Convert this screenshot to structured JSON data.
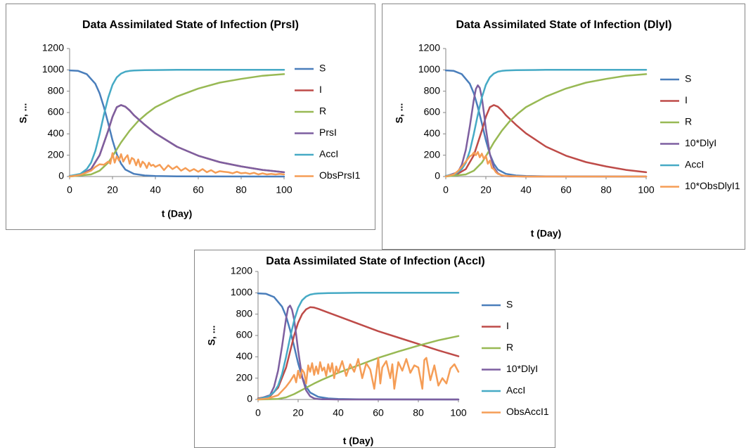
{
  "colors": {
    "S": "#4a7ebb",
    "I": "#be4b48",
    "R": "#98b954",
    "P": "#7d5fa0",
    "A": "#46aac5",
    "O": "#f59d56"
  },
  "chart_data": [
    {
      "type": "line",
      "title": "Data Assimilated State of Infection (PrsI)",
      "xlabel": "t (Day)",
      "ylabel": "S, ...",
      "xlim": [
        0,
        100
      ],
      "ylim": [
        0,
        1200
      ],
      "xticks": [
        0,
        20,
        40,
        60,
        80,
        100
      ],
      "yticks": [
        0,
        200,
        400,
        600,
        800,
        1000,
        1200
      ],
      "legend_position": "right",
      "series": [
        {
          "name": "S",
          "color_key": "S",
          "x": [
            0,
            4,
            8,
            12,
            14,
            16,
            18,
            20,
            22,
            24,
            26,
            30,
            35,
            40,
            50,
            100
          ],
          "y": [
            995,
            990,
            960,
            870,
            780,
            650,
            500,
            340,
            210,
            120,
            65,
            25,
            10,
            5,
            2,
            0
          ]
        },
        {
          "name": "I",
          "color_key": "I",
          "x": [
            0,
            5,
            10,
            14,
            18,
            20,
            22,
            24,
            26,
            28,
            30,
            35,
            40,
            50,
            60,
            70,
            80,
            90,
            100
          ],
          "y": [
            5,
            15,
            70,
            200,
            430,
            560,
            650,
            670,
            655,
            620,
            575,
            485,
            405,
            280,
            195,
            135,
            95,
            62,
            40
          ]
        },
        {
          "name": "R",
          "color_key": "R",
          "x": [
            0,
            10,
            14,
            18,
            20,
            24,
            28,
            32,
            36,
            40,
            50,
            60,
            70,
            80,
            90,
            100
          ],
          "y": [
            0,
            20,
            55,
            130,
            190,
            320,
            430,
            520,
            590,
            650,
            750,
            825,
            880,
            915,
            945,
            960
          ]
        },
        {
          "name": "PrsI",
          "color_key": "P",
          "x": [
            0,
            5,
            10,
            14,
            18,
            20,
            22,
            24,
            26,
            28,
            30,
            35,
            40,
            50,
            60,
            70,
            80,
            90,
            100
          ],
          "y": [
            5,
            15,
            70,
            200,
            430,
            560,
            650,
            670,
            655,
            620,
            575,
            485,
            405,
            280,
            195,
            135,
            95,
            62,
            40
          ]
        },
        {
          "name": "AccI",
          "color_key": "A",
          "x": [
            0,
            5,
            8,
            10,
            12,
            14,
            16,
            18,
            20,
            22,
            24,
            26,
            28,
            30,
            35,
            40,
            50,
            100
          ],
          "y": [
            5,
            25,
            70,
            130,
            240,
            400,
            580,
            740,
            860,
            930,
            965,
            983,
            990,
            994,
            997,
            998,
            1000,
            1000
          ]
        },
        {
          "name": "ObsPrsI1",
          "color_key": "O",
          "x": [
            0,
            5,
            10,
            12,
            14,
            16,
            18,
            19,
            20,
            21,
            22,
            23,
            24,
            25,
            26,
            27,
            28,
            29,
            30,
            31,
            32,
            33,
            34,
            35,
            36,
            37,
            38,
            39,
            40,
            42,
            44,
            46,
            48,
            50,
            52,
            54,
            56,
            58,
            60,
            62,
            64,
            66,
            68,
            70,
            72,
            74,
            76,
            78,
            80,
            82,
            84,
            86,
            88,
            90,
            92,
            94,
            96,
            98,
            100
          ],
          "y": [
            0,
            15,
            55,
            90,
            115,
            110,
            140,
            120,
            220,
            130,
            190,
            150,
            210,
            140,
            175,
            200,
            120,
            175,
            160,
            105,
            160,
            90,
            140,
            120,
            80,
            130,
            100,
            110,
            90,
            110,
            60,
            105,
            70,
            95,
            55,
            80,
            50,
            70,
            45,
            70,
            40,
            60,
            35,
            50,
            45,
            40,
            30,
            45,
            30,
            35,
            25,
            35,
            20,
            30,
            20,
            25,
            20,
            25,
            20
          ]
        }
      ]
    },
    {
      "type": "line",
      "title": "Data Assimilated State of Infection (DlyI)",
      "xlabel": "t (Day)",
      "ylabel": "S, ...",
      "xlim": [
        0,
        100
      ],
      "ylim": [
        0,
        1200
      ],
      "xticks": [
        0,
        20,
        40,
        60,
        80,
        100
      ],
      "yticks": [
        0,
        200,
        400,
        600,
        800,
        1000,
        1200
      ],
      "legend_position": "right",
      "series": [
        {
          "name": "S",
          "color_key": "S",
          "x": [
            0,
            4,
            8,
            12,
            14,
            16,
            18,
            20,
            22,
            24,
            26,
            30,
            35,
            40,
            50,
            100
          ],
          "y": [
            995,
            990,
            960,
            870,
            780,
            650,
            500,
            340,
            210,
            120,
            65,
            25,
            10,
            5,
            2,
            0
          ]
        },
        {
          "name": "I",
          "color_key": "I",
          "x": [
            0,
            5,
            10,
            14,
            18,
            20,
            22,
            24,
            26,
            28,
            30,
            35,
            40,
            50,
            60,
            70,
            80,
            90,
            100
          ],
          "y": [
            5,
            15,
            70,
            200,
            430,
            560,
            650,
            670,
            655,
            620,
            575,
            485,
            405,
            280,
            195,
            135,
            95,
            62,
            40
          ]
        },
        {
          "name": "R",
          "color_key": "R",
          "x": [
            0,
            10,
            14,
            18,
            20,
            24,
            28,
            32,
            36,
            40,
            50,
            60,
            70,
            80,
            90,
            100
          ],
          "y": [
            0,
            20,
            55,
            130,
            190,
            320,
            430,
            520,
            590,
            650,
            750,
            825,
            880,
            915,
            945,
            960
          ]
        },
        {
          "name": "10*DlyI",
          "color_key": "P",
          "x": [
            0,
            6,
            8,
            10,
            12,
            14,
            15,
            16,
            17,
            18,
            19,
            20,
            22,
            24,
            26,
            28,
            30,
            32,
            35,
            40,
            50,
            100
          ],
          "y": [
            2,
            40,
            110,
            250,
            470,
            720,
            820,
            855,
            830,
            740,
            600,
            450,
            210,
            85,
            30,
            10,
            4,
            2,
            1,
            0,
            0,
            0
          ]
        },
        {
          "name": "AccI",
          "color_key": "A",
          "x": [
            0,
            5,
            8,
            10,
            12,
            14,
            16,
            18,
            20,
            22,
            24,
            26,
            28,
            30,
            35,
            40,
            50,
            100
          ],
          "y": [
            5,
            25,
            70,
            130,
            240,
            400,
            580,
            740,
            860,
            930,
            965,
            983,
            990,
            994,
            997,
            998,
            1000,
            1000
          ]
        },
        {
          "name": "10*ObsDlyI1",
          "color_key": "O",
          "x": [
            0,
            4,
            6,
            8,
            10,
            12,
            13,
            14,
            15,
            16,
            17,
            18,
            19,
            20,
            21,
            22,
            23,
            24,
            25,
            26,
            28,
            30,
            35,
            40,
            100
          ],
          "y": [
            0,
            20,
            50,
            90,
            140,
            190,
            200,
            225,
            200,
            230,
            180,
            215,
            165,
            195,
            120,
            150,
            80,
            70,
            40,
            25,
            12,
            6,
            2,
            0,
            0
          ]
        }
      ]
    },
    {
      "type": "line",
      "title": "Data Assimilated State of Infection (AccI)",
      "xlabel": "t (Day)",
      "ylabel": "S, ...",
      "xlim": [
        0,
        100
      ],
      "ylim": [
        0,
        1200
      ],
      "xticks": [
        0,
        20,
        40,
        60,
        80,
        100
      ],
      "yticks": [
        0,
        200,
        400,
        600,
        800,
        1000,
        1200
      ],
      "legend_position": "right",
      "series": [
        {
          "name": "S",
          "color_key": "S",
          "x": [
            0,
            4,
            8,
            12,
            14,
            16,
            18,
            20,
            22,
            24,
            26,
            30,
            35,
            40,
            50,
            100
          ],
          "y": [
            995,
            990,
            960,
            870,
            780,
            650,
            500,
            340,
            210,
            120,
            65,
            25,
            10,
            5,
            2,
            0
          ]
        },
        {
          "name": "I",
          "color_key": "I",
          "x": [
            0,
            6,
            10,
            14,
            16,
            18,
            20,
            22,
            24,
            26,
            28,
            30,
            35,
            40,
            50,
            60,
            70,
            80,
            90,
            100
          ],
          "y": [
            10,
            30,
            110,
            300,
            450,
            600,
            720,
            800,
            845,
            865,
            862,
            850,
            815,
            780,
            710,
            640,
            580,
            520,
            460,
            405
          ]
        },
        {
          "name": "R",
          "color_key": "R",
          "x": [
            0,
            10,
            14,
            18,
            20,
            24,
            28,
            32,
            40,
            50,
            60,
            70,
            80,
            90,
            100
          ],
          "y": [
            0,
            5,
            20,
            50,
            70,
            110,
            150,
            185,
            250,
            320,
            390,
            450,
            505,
            555,
            595
          ]
        },
        {
          "name": "10*DlyI",
          "color_key": "P",
          "x": [
            0,
            6,
            8,
            10,
            12,
            14,
            15,
            16,
            17,
            18,
            19,
            20,
            22,
            24,
            26,
            28,
            30,
            32,
            35,
            40,
            50,
            100
          ],
          "y": [
            2,
            40,
            120,
            270,
            500,
            760,
            860,
            880,
            840,
            750,
            610,
            460,
            210,
            85,
            30,
            10,
            4,
            2,
            1,
            0,
            0,
            0
          ]
        },
        {
          "name": "AccI",
          "color_key": "A",
          "x": [
            0,
            5,
            8,
            10,
            12,
            14,
            16,
            18,
            20,
            22,
            24,
            26,
            28,
            30,
            35,
            40,
            50,
            100
          ],
          "y": [
            5,
            25,
            70,
            130,
            240,
            400,
            580,
            740,
            860,
            930,
            965,
            983,
            990,
            994,
            997,
            998,
            1000,
            1000
          ]
        },
        {
          "name": "ObsAccI1",
          "color_key": "O",
          "x": [
            0,
            5,
            10,
            14,
            16,
            18,
            19,
            20,
            21,
            22,
            23,
            24,
            25,
            26,
            27,
            28,
            29,
            30,
            31,
            32,
            33,
            34,
            35,
            36,
            37,
            38,
            39,
            40,
            42,
            44,
            46,
            48,
            50,
            52,
            54,
            56,
            58,
            60,
            61,
            62,
            64,
            66,
            67,
            68,
            70,
            72,
            74,
            76,
            78,
            80,
            82,
            83,
            84,
            86,
            88,
            90,
            92,
            94,
            96,
            98,
            100
          ],
          "y": [
            0,
            10,
            40,
            120,
            170,
            230,
            160,
            270,
            200,
            280,
            250,
            150,
            320,
            260,
            340,
            230,
            310,
            240,
            350,
            270,
            300,
            220,
            330,
            260,
            340,
            200,
            310,
            250,
            360,
            220,
            330,
            260,
            380,
            200,
            340,
            280,
            100,
            390,
            150,
            300,
            360,
            200,
            330,
            100,
            350,
            270,
            380,
            250,
            320,
            300,
            100,
            370,
            390,
            180,
            320,
            130,
            200,
            150,
            290,
            330,
            260
          ]
        }
      ]
    }
  ]
}
